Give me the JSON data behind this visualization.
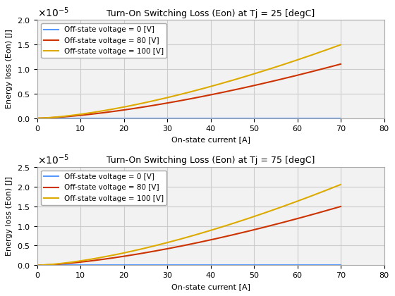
{
  "title1": "Turn-On Switching Loss (Eon) at Tj = 25 [degC]",
  "title2": "Turn-On Switching Loss (Eon) at Tj = 75 [degC]",
  "xlabel": "On-state current [A]",
  "ylabel": "Energy loss (Eon) [J]",
  "xlim": [
    0,
    80
  ],
  "ylim1": [
    0,
    2e-05
  ],
  "ylim2": [
    0,
    2.5e-05
  ],
  "legend_labels": [
    "Off-state voltage = 0 [V]",
    "Off-state voltage = 80 [V]",
    "Off-state voltage = 100 [V]"
  ],
  "colors": [
    "#5599ff",
    "#cc3300",
    "#ddaa00"
  ],
  "x_max": 70,
  "ax1": {
    "v0": {
      "a": 0.0,
      "b": 1.5
    },
    "v80": {
      "a": 1.88e-08,
      "b": 1.5
    },
    "v100": {
      "a": 2.55e-08,
      "b": 1.5
    }
  },
  "ax2": {
    "v0": {
      "a": 0.0,
      "b": 1.5
    },
    "v80": {
      "a": 2.55e-08,
      "b": 1.5
    },
    "v100": {
      "a": 3.5e-08,
      "b": 1.5
    }
  },
  "grid_color": "#cccccc",
  "bg_color": "#f2f2f2",
  "yticks1": [
    0,
    5e-06,
    1e-05,
    1.5e-05,
    2e-05
  ],
  "yticks2": [
    0,
    5e-06,
    1e-05,
    1.5e-05,
    2e-05,
    2.5e-05
  ],
  "xticks": [
    0,
    10,
    20,
    30,
    40,
    50,
    60,
    70,
    80
  ]
}
